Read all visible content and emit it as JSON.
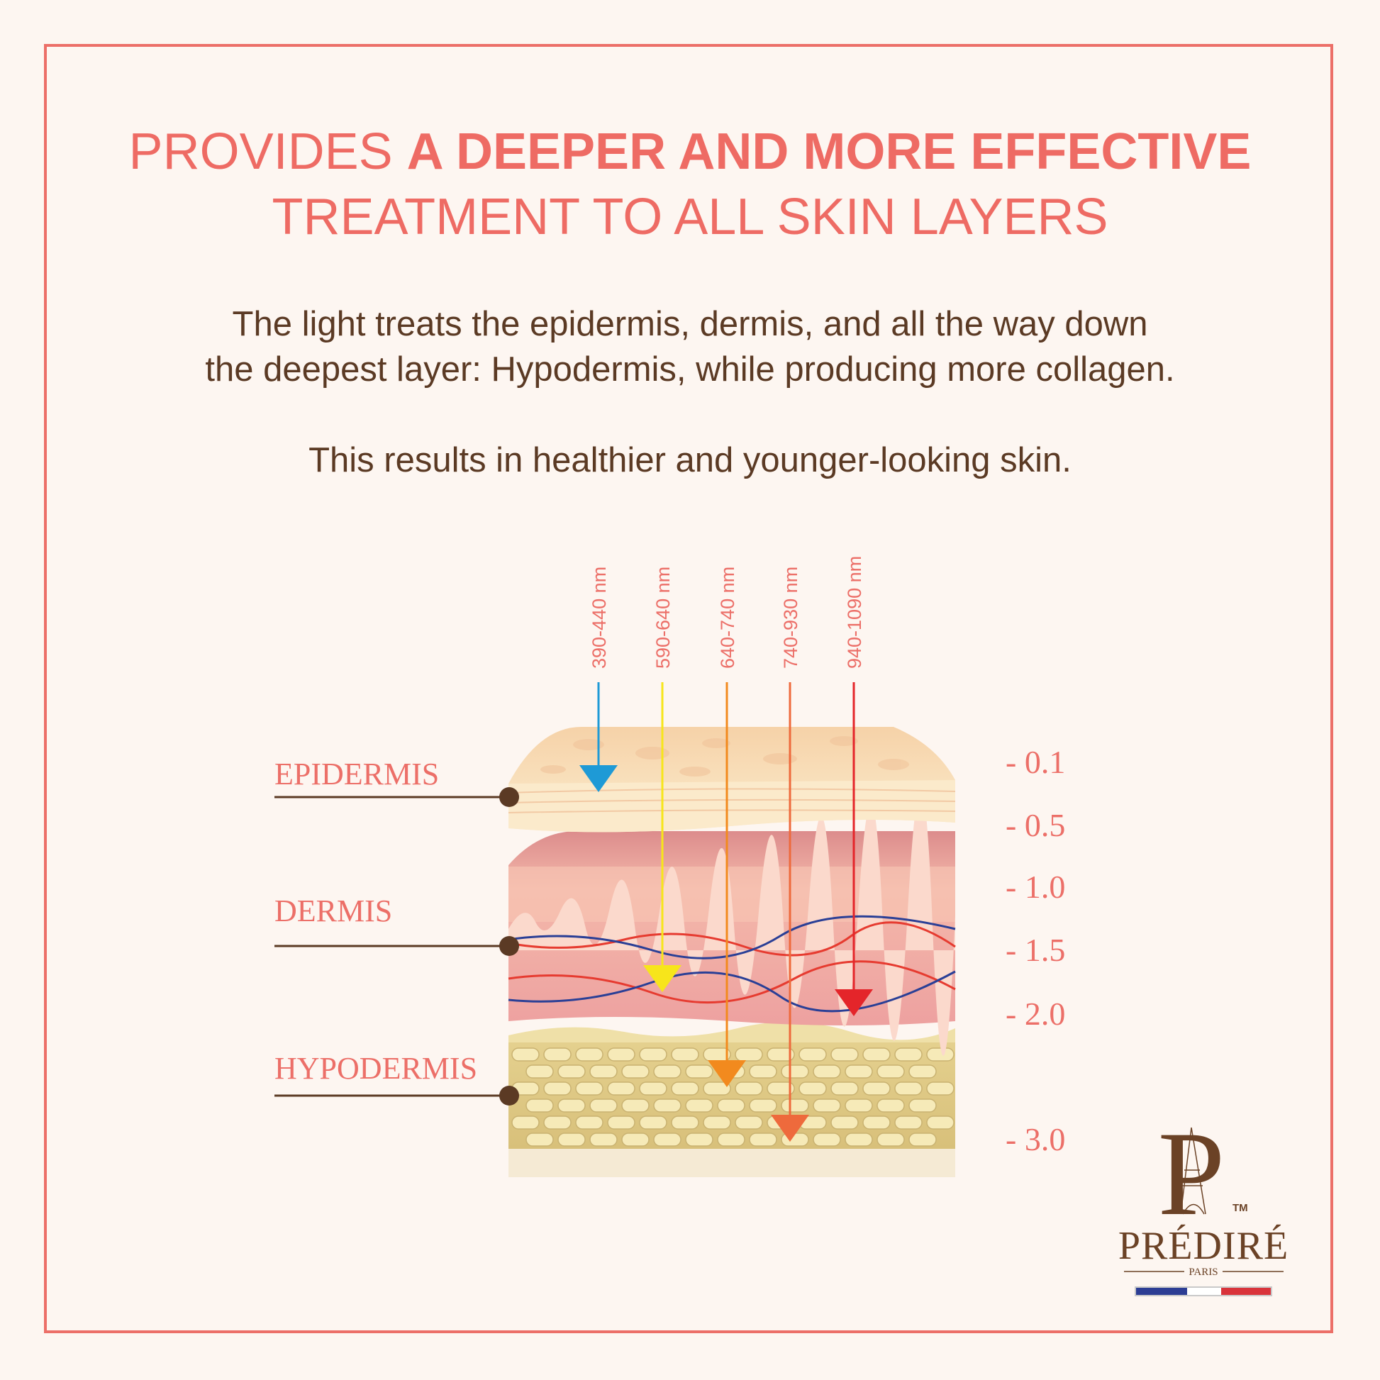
{
  "headline": {
    "line1_regular": "PROVIDES ",
    "line1_bold": "A DEEPER AND MORE EFFECTIVE",
    "line2": "TREATMENT TO ALL SKIN LAYERS"
  },
  "description": {
    "line1": "The light treats the epidermis, dermis, and all the way down",
    "line2": "the deepest layer: Hypodermis, while producing more collagen.",
    "line3": "This results in healthier and younger-looking skin."
  },
  "wavelengths": [
    {
      "label": "390-440 nm",
      "color": "#1e9ad6",
      "reaches": "epidermis"
    },
    {
      "label": "590-640 nm",
      "color": "#f7e51b",
      "reaches": "dermis"
    },
    {
      "label": "640-740 nm",
      "color": "#f28a1e",
      "reaches": "hypodermis"
    },
    {
      "label": "740-930 nm",
      "color": "#ee6a3c",
      "reaches": "hypodermis"
    },
    {
      "label": "940-1090 nm",
      "color": "#e4252a",
      "reaches": "dermis"
    }
  ],
  "layers": {
    "epidermis": "EPIDERMIS",
    "dermis": "DERMIS",
    "hypodermis": "HYPODERMIS"
  },
  "depth_scale": [
    "- 0.1",
    "- 0.5",
    "- 1.0",
    "- 1.5",
    "- 2.0",
    "- 3.0"
  ],
  "logo": {
    "monogram": "P",
    "trademark": "TM",
    "brand": "PRÉDIRÉ",
    "city": "PARIS"
  },
  "colors": {
    "accent": "#ec6f68",
    "text": "#5b3a24",
    "background": "#fdf6f1",
    "brand": "#6b4226"
  }
}
